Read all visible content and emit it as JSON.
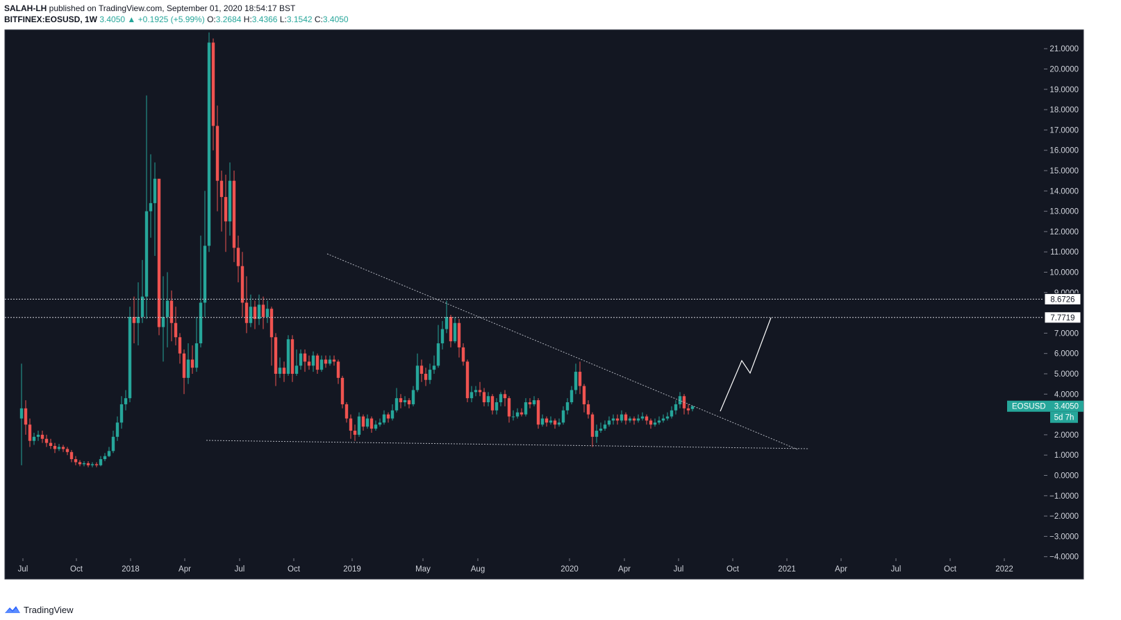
{
  "header": {
    "publisher": "SALAH-LH",
    "published_text": " published on TradingView.com, September 01, 2020 18:54:17 BST",
    "symbol": "BITFINEX:EOSUSD, 1W",
    "last": "3.4050",
    "change": "+0.1925 (+5.99%)",
    "o_label": "O:",
    "o_value": "3.2684",
    "h_label": "H:",
    "h_value": "3.4366",
    "l_label": "L:",
    "l_value": "3.1542",
    "c_label": "C:",
    "c_value": "3.4050"
  },
  "footer": {
    "brand": "TradingView"
  },
  "colors": {
    "up": "#26a69a",
    "down": "#ef5350",
    "background": "#131722",
    "grid": "#2a2e39",
    "text": "#d1d4dc"
  },
  "chart_data": {
    "type": "candlestick",
    "symbol": "EOSUSD",
    "interval": "1W",
    "ylim": [
      -4,
      22
    ],
    "y_ticks": [
      "21.0000",
      "20.0000",
      "19.0000",
      "18.0000",
      "17.0000",
      "16.0000",
      "15.0000",
      "14.0000",
      "13.0000",
      "12.0000",
      "11.0000",
      "10.0000",
      "9.0000",
      "7.0000",
      "6.0000",
      "5.0000",
      "4.0000",
      "2.0000",
      "1.0000",
      "0.0000",
      "−1.0000",
      "−2.0000",
      "−3.0000",
      "−4.0000"
    ],
    "x_ticks": [
      "Jul",
      "Oct",
      "2018",
      "Apr",
      "Jul",
      "Oct",
      "2019",
      "May",
      "Aug",
      "2020",
      "Apr",
      "Jul",
      "Oct",
      "2021",
      "Apr",
      "Jul",
      "Oct",
      "2022"
    ],
    "price_label": {
      "name": "EOSUSD",
      "value": "3.4050",
      "countdown": "5d 7h"
    },
    "horizontal_levels": [
      {
        "value": "8.6726"
      },
      {
        "value": "7.7719"
      }
    ],
    "candles": [
      [
        2.8,
        3.3,
        5.5,
        0.5
      ],
      [
        3.3,
        2.5,
        3.7,
        2.0
      ],
      [
        2.5,
        1.7,
        2.8,
        1.4
      ],
      [
        1.7,
        1.9,
        2.1,
        1.5
      ],
      [
        1.9,
        2.0,
        2.2,
        1.7
      ],
      [
        2.0,
        1.8,
        2.2,
        1.6
      ],
      [
        1.8,
        1.6,
        2.0,
        1.4
      ],
      [
        1.6,
        1.45,
        1.8,
        1.3
      ],
      [
        1.45,
        1.3,
        1.6,
        1.1
      ],
      [
        1.3,
        1.4,
        1.55,
        1.2
      ],
      [
        1.4,
        1.3,
        1.5,
        1.15
      ],
      [
        1.3,
        1.15,
        1.4,
        1.0
      ],
      [
        1.15,
        0.8,
        1.25,
        0.65
      ],
      [
        0.8,
        0.65,
        0.95,
        0.5
      ],
      [
        0.65,
        0.55,
        0.75,
        0.45
      ],
      [
        0.55,
        0.6,
        0.7,
        0.45
      ],
      [
        0.6,
        0.5,
        0.7,
        0.4
      ],
      [
        0.5,
        0.55,
        0.65,
        0.4
      ],
      [
        0.55,
        0.5,
        0.65,
        0.4
      ],
      [
        0.5,
        0.8,
        0.95,
        0.45
      ],
      [
        0.8,
        0.95,
        1.1,
        0.7
      ],
      [
        0.95,
        1.2,
        1.4,
        0.9
      ],
      [
        1.2,
        1.9,
        2.2,
        1.1
      ],
      [
        1.9,
        2.6,
        2.9,
        1.7
      ],
      [
        2.6,
        3.5,
        3.9,
        2.3
      ],
      [
        3.5,
        3.8,
        4.2,
        3.2
      ],
      [
        3.8,
        7.8,
        8.3,
        3.6
      ],
      [
        7.8,
        7.5,
        8.8,
        6.5
      ],
      [
        7.5,
        7.8,
        9.5,
        6.4
      ],
      [
        7.8,
        8.8,
        10.6,
        7.5
      ],
      [
        8.8,
        13.0,
        18.7,
        7.7
      ],
      [
        13.0,
        13.4,
        15.8,
        11.7
      ],
      [
        13.4,
        14.6,
        15.4,
        10.8
      ],
      [
        14.6,
        7.3,
        14.5,
        6.9
      ],
      [
        7.3,
        7.8,
        9.8,
        5.6
      ],
      [
        7.8,
        8.6,
        10.0,
        6.3
      ],
      [
        8.6,
        7.5,
        9.1,
        6.6
      ],
      [
        7.5,
        6.8,
        8.3,
        6.4
      ],
      [
        6.8,
        6.0,
        7.0,
        5.5
      ],
      [
        6.0,
        4.8,
        6.2,
        4.0
      ],
      [
        4.8,
        5.7,
        6.5,
        4.5
      ],
      [
        5.7,
        5.3,
        6.4,
        5.0
      ],
      [
        5.3,
        6.5,
        7.8,
        5.1
      ],
      [
        6.5,
        8.5,
        11.8,
        6.3
      ],
      [
        8.5,
        11.3,
        14.0,
        7.8
      ],
      [
        11.3,
        21.3,
        21.8,
        11.0
      ],
      [
        21.3,
        17.2,
        21.5,
        16.0
      ],
      [
        17.2,
        14.5,
        18.2,
        13.0
      ],
      [
        14.5,
        13.7,
        15.0,
        12.0
      ],
      [
        13.7,
        12.5,
        14.8,
        11.0
      ],
      [
        12.5,
        14.5,
        15.4,
        11.8
      ],
      [
        14.5,
        11.2,
        15.0,
        10.5
      ],
      [
        11.2,
        10.3,
        11.8,
        9.5
      ],
      [
        10.3,
        8.5,
        11.0,
        7.8
      ],
      [
        8.5,
        7.5,
        9.8,
        7.0
      ],
      [
        7.5,
        8.3,
        8.9,
        7.3
      ],
      [
        8.3,
        7.7,
        8.6,
        7.2
      ],
      [
        7.7,
        8.4,
        8.9,
        7.4
      ],
      [
        8.4,
        7.8,
        8.8,
        7.2
      ],
      [
        7.8,
        8.2,
        8.6,
        7.5
      ],
      [
        8.2,
        6.8,
        8.3,
        5.4
      ],
      [
        6.8,
        5.0,
        7.0,
        4.4
      ],
      [
        5.0,
        5.3,
        5.8,
        4.8
      ],
      [
        5.3,
        5.0,
        5.6,
        4.6
      ],
      [
        5.0,
        6.7,
        6.9,
        4.9
      ],
      [
        6.7,
        5.0,
        6.9,
        4.6
      ],
      [
        5.0,
        5.4,
        6.2,
        4.9
      ],
      [
        5.4,
        6.0,
        6.2,
        5.2
      ],
      [
        6.0,
        5.6,
        6.2,
        5.1
      ],
      [
        5.6,
        5.4,
        5.9,
        5.2
      ],
      [
        5.4,
        5.9,
        6.1,
        5.1
      ],
      [
        5.9,
        5.2,
        6.0,
        5.0
      ],
      [
        5.2,
        5.7,
        5.9,
        5.1
      ],
      [
        5.7,
        5.5,
        5.9,
        5.3
      ],
      [
        5.5,
        5.7,
        5.9,
        5.4
      ],
      [
        5.7,
        5.6,
        5.9,
        5.4
      ],
      [
        5.6,
        4.8,
        5.7,
        4.5
      ],
      [
        4.8,
        3.5,
        4.9,
        3.3
      ],
      [
        3.5,
        2.8,
        3.6,
        2.6
      ],
      [
        2.8,
        2.2,
        3.0,
        1.8
      ],
      [
        2.2,
        2.0,
        2.5,
        1.7
      ],
      [
        2.0,
        2.9,
        3.1,
        1.9
      ],
      [
        2.9,
        2.4,
        3.0,
        2.2
      ],
      [
        2.4,
        2.8,
        3.0,
        2.3
      ],
      [
        2.8,
        2.3,
        2.9,
        2.1
      ],
      [
        2.3,
        2.5,
        2.7,
        2.2
      ],
      [
        2.5,
        2.6,
        2.8,
        2.4
      ],
      [
        2.6,
        3.0,
        3.2,
        2.5
      ],
      [
        3.0,
        2.8,
        3.1,
        2.6
      ],
      [
        2.8,
        3.2,
        3.5,
        2.7
      ],
      [
        3.2,
        3.8,
        4.3,
        3.1
      ],
      [
        3.8,
        3.6,
        4.0,
        3.3
      ],
      [
        3.6,
        3.7,
        3.9,
        3.4
      ],
      [
        3.7,
        3.5,
        3.8,
        3.3
      ],
      [
        3.5,
        4.2,
        4.4,
        3.4
      ],
      [
        4.2,
        5.4,
        6.0,
        4.1
      ],
      [
        5.4,
        5.0,
        5.7,
        4.6
      ],
      [
        5.0,
        4.7,
        5.3,
        4.4
      ],
      [
        4.7,
        5.2,
        5.5,
        4.5
      ],
      [
        5.2,
        5.4,
        5.9,
        5.0
      ],
      [
        5.4,
        6.5,
        7.4,
        5.3
      ],
      [
        6.5,
        7.2,
        7.6,
        6.2
      ],
      [
        7.2,
        7.8,
        8.6,
        7.0
      ],
      [
        7.8,
        6.6,
        7.9,
        6.3
      ],
      [
        6.6,
        7.5,
        7.8,
        6.5
      ],
      [
        7.5,
        6.3,
        7.7,
        5.8
      ],
      [
        6.3,
        5.6,
        6.5,
        5.4
      ],
      [
        5.6,
        3.8,
        5.7,
        3.6
      ],
      [
        3.8,
        4.1,
        4.4,
        3.6
      ],
      [
        4.1,
        4.2,
        4.4,
        3.9
      ],
      [
        4.2,
        4.1,
        4.6,
        3.9
      ],
      [
        4.1,
        3.6,
        4.3,
        3.4
      ],
      [
        3.6,
        3.9,
        4.1,
        3.4
      ],
      [
        3.9,
        3.2,
        4.0,
        3.0
      ],
      [
        3.2,
        3.6,
        3.8,
        3.0
      ],
      [
        3.6,
        4.0,
        4.1,
        3.4
      ],
      [
        4.0,
        3.8,
        4.2,
        3.4
      ],
      [
        3.8,
        2.9,
        3.9,
        2.6
      ],
      [
        2.9,
        2.9,
        3.2,
        2.7
      ],
      [
        2.9,
        3.1,
        3.3,
        2.8
      ],
      [
        3.1,
        3.0,
        3.3,
        2.9
      ],
      [
        3.0,
        3.6,
        3.8,
        2.9
      ],
      [
        3.6,
        3.5,
        3.8,
        3.3
      ],
      [
        3.5,
        3.7,
        3.9,
        3.4
      ],
      [
        3.7,
        2.5,
        3.8,
        2.3
      ],
      [
        2.5,
        2.8,
        3.0,
        2.4
      ],
      [
        2.8,
        2.6,
        2.9,
        2.4
      ],
      [
        2.6,
        2.7,
        2.9,
        2.5
      ],
      [
        2.7,
        2.5,
        2.8,
        2.3
      ],
      [
        2.5,
        2.6,
        2.8,
        2.4
      ],
      [
        2.6,
        3.2,
        3.4,
        2.5
      ],
      [
        3.2,
        3.6,
        3.8,
        3.0
      ],
      [
        3.6,
        4.2,
        4.4,
        3.5
      ],
      [
        4.2,
        5.1,
        5.5,
        4.0
      ],
      [
        5.1,
        4.4,
        5.6,
        4.0
      ],
      [
        4.4,
        3.5,
        4.5,
        3.1
      ],
      [
        3.5,
        3.0,
        3.7,
        2.8
      ],
      [
        3.0,
        1.9,
        3.1,
        1.4
      ],
      [
        1.9,
        2.2,
        2.5,
        1.6
      ],
      [
        2.2,
        2.3,
        2.6,
        2.1
      ],
      [
        2.3,
        2.5,
        2.7,
        2.2
      ],
      [
        2.5,
        2.7,
        2.9,
        2.4
      ],
      [
        2.7,
        2.8,
        3.0,
        2.5
      ],
      [
        2.8,
        2.7,
        3.0,
        2.5
      ],
      [
        2.7,
        3.0,
        3.2,
        2.6
      ],
      [
        3.0,
        2.7,
        3.1,
        2.5
      ],
      [
        2.7,
        2.8,
        2.9,
        2.6
      ],
      [
        2.8,
        2.7,
        2.9,
        2.5
      ],
      [
        2.7,
        2.8,
        3.0,
        2.6
      ],
      [
        2.8,
        2.9,
        3.1,
        2.7
      ],
      [
        2.9,
        2.7,
        3.0,
        2.5
      ],
      [
        2.7,
        2.5,
        2.8,
        2.3
      ],
      [
        2.5,
        2.6,
        2.8,
        2.4
      ],
      [
        2.6,
        2.7,
        2.9,
        2.5
      ],
      [
        2.7,
        2.8,
        3.0,
        2.6
      ],
      [
        2.8,
        2.9,
        3.1,
        2.7
      ],
      [
        2.9,
        3.2,
        3.4,
        2.8
      ],
      [
        3.2,
        3.5,
        3.7,
        3.0
      ],
      [
        3.5,
        3.9,
        4.1,
        3.3
      ],
      [
        3.9,
        3.3,
        4.0,
        3.0
      ],
      [
        3.3,
        3.2,
        3.5,
        3.0
      ],
      [
        3.2684,
        3.405,
        3.4366,
        3.1542
      ]
    ]
  }
}
